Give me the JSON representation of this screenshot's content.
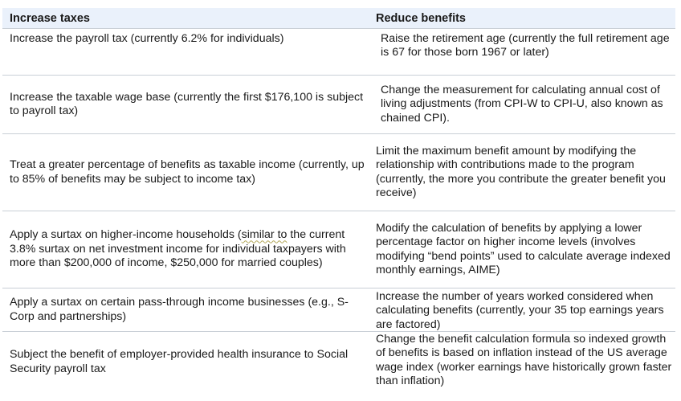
{
  "header": {
    "left": "Increase taxes",
    "right": "Reduce benefits"
  },
  "rows": [
    {
      "left": "Increase the payroll tax (currently 6.2% for individuals)",
      "right": "Raise the retirement age (currently the full retirement age is 67 for those born 1967 or later)"
    },
    {
      "left": "Increase the taxable wage base (currently the first $176,100 is subject to payroll tax)",
      "right": "Change the measurement for calculating annual cost of living adjustments (from CPI-W to CPI-U, also known as chained CPI)."
    },
    {
      "left": "Treat a greater percentage of benefits as taxable income (currently, up to 85% of benefits may be subject to income tax)",
      "right": "Limit the maximum benefit amount by modifying the relationship with contributions made to the program (currently, the more you contribute the greater benefit you receive)"
    },
    {
      "left_pre": "Apply a surtax on higher-income households (",
      "left_flag": "similar to",
      "left_post": " the current 3.8% surtax on net investment income for individual taxpayers with more than $200,000 of income, $250,000 for married couples)",
      "right": "Modify the calculation of benefits by applying a lower percentage factor on higher income levels (involves modifying “bend points” used to calculate average indexed monthly earnings, AIME)"
    },
    {
      "left": "Apply a surtax on certain pass-through income businesses (e.g., S-Corp and partnerships)",
      "right": "Increase the number of years worked considered when calculating benefits (currently, your 35 top earnings years are factored)"
    },
    {
      "left": "Subject the benefit of employer-provided health insurance to Social Security payroll tax",
      "right": "Change the benefit calculation formula so indexed growth of benefits is based on inflation instead of the US average wage index (worker earnings have historically grown faster than inflation)"
    }
  ]
}
